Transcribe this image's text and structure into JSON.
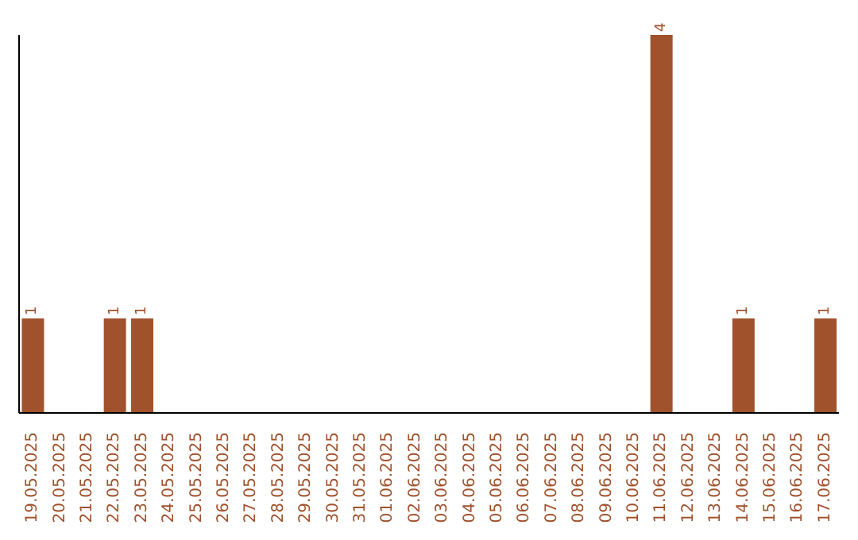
{
  "chart_data": {
    "type": "bar",
    "categories": [
      "19.05.2025",
      "20.05.2025",
      "21.05.2025",
      "22.05.2025",
      "23.05.2025",
      "24.05.2025",
      "25.05.2025",
      "26.05.2025",
      "27.05.2025",
      "28.05.2025",
      "29.05.2025",
      "30.05.2025",
      "31.05.2025",
      "01.06.2025",
      "02.06.2025",
      "03.06.2025",
      "04.06.2025",
      "05.06.2025",
      "06.06.2025",
      "07.06.2025",
      "08.06.2025",
      "09.06.2025",
      "10.06.2025",
      "11.06.2025",
      "12.06.2025",
      "13.06.2025",
      "14.06.2025",
      "15.06.2025",
      "16.06.2025",
      "17.06.2025"
    ],
    "values": [
      1,
      0,
      0,
      1,
      1,
      0,
      0,
      0,
      0,
      0,
      0,
      0,
      0,
      0,
      0,
      0,
      0,
      0,
      0,
      0,
      0,
      0,
      0,
      4,
      0,
      0,
      1,
      0,
      0,
      1
    ],
    "value_labels": [
      "1",
      null,
      null,
      "1",
      "1",
      null,
      null,
      null,
      null,
      null,
      null,
      null,
      null,
      null,
      null,
      null,
      null,
      null,
      null,
      null,
      null,
      null,
      null,
      "4",
      null,
      null,
      "1",
      null,
      null,
      "1"
    ],
    "color": "#a0522d",
    "tick_labels": "x",
    "grid": false,
    "legend": false
  }
}
